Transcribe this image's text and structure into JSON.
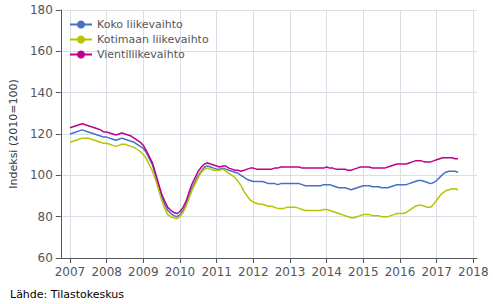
{
  "chart_data": {
    "type": "line",
    "ylabel": "Indeksi (2010=100)",
    "annotation": "Lähde: Tilastokeskus",
    "xlim": [
      2006.75,
      2018.1
    ],
    "xticks": [
      2007,
      2008,
      2009,
      2010,
      2011,
      2012,
      2013,
      2014,
      2015,
      2016,
      2017,
      2018
    ],
    "ylim": [
      60,
      180
    ],
    "yticks": [
      60,
      80,
      100,
      120,
      140,
      160,
      180
    ],
    "grid": true,
    "legend": "upper left",
    "x": [
      2007,
      2007.083333,
      2007.166667,
      2007.25,
      2007.333333,
      2007.416667,
      2007.5,
      2007.583333,
      2007.666667,
      2007.75,
      2007.833333,
      2007.916667,
      2008,
      2008.083333,
      2008.166667,
      2008.25,
      2008.333333,
      2008.416667,
      2008.5,
      2008.583333,
      2008.666667,
      2008.75,
      2008.833333,
      2008.916667,
      2009,
      2009.083333,
      2009.166667,
      2009.25,
      2009.333333,
      2009.416667,
      2009.5,
      2009.583333,
      2009.666667,
      2009.75,
      2009.833333,
      2009.916667,
      2010,
      2010.083333,
      2010.166667,
      2010.25,
      2010.333333,
      2010.416667,
      2010.5,
      2010.583333,
      2010.666667,
      2010.75,
      2010.833333,
      2010.916667,
      2011,
      2011.083333,
      2011.166667,
      2011.25,
      2011.333333,
      2011.416667,
      2011.5,
      2011.583333,
      2011.666667,
      2011.75,
      2011.833333,
      2011.916667,
      2012,
      2012.083333,
      2012.166667,
      2012.25,
      2012.333333,
      2012.416667,
      2012.5,
      2012.583333,
      2012.666667,
      2012.75,
      2012.833333,
      2012.916667,
      2013,
      2013.083333,
      2013.166667,
      2013.25,
      2013.333333,
      2013.416667,
      2013.5,
      2013.583333,
      2013.666667,
      2013.75,
      2013.833333,
      2013.916667,
      2014,
      2014.083333,
      2014.166667,
      2014.25,
      2014.333333,
      2014.416667,
      2014.5,
      2014.583333,
      2014.666667,
      2014.75,
      2014.833333,
      2014.916667,
      2015,
      2015.083333,
      2015.166667,
      2015.25,
      2015.333333,
      2015.416667,
      2015.5,
      2015.583333,
      2015.666667,
      2015.75,
      2015.833333,
      2015.916667,
      2016,
      2016.083333,
      2016.166667,
      2016.25,
      2016.333333,
      2016.416667,
      2016.5,
      2016.583333,
      2016.666667,
      2016.75,
      2016.833333,
      2016.916667,
      2017,
      2017.083333,
      2017.166667,
      2017.25,
      2017.333333,
      2017.416667,
      2017.5,
      2017.583333
    ],
    "series": [
      {
        "name": "Koko liikevaihto",
        "color": "#4472c4",
        "values": [
          120.0,
          120.5,
          121.0,
          121.5,
          122.0,
          121.5,
          121.0,
          120.5,
          120.0,
          119.5,
          119.0,
          118.5,
          118.5,
          118.0,
          117.5,
          117.0,
          117.5,
          118.0,
          117.5,
          117.0,
          116.5,
          116.0,
          115.0,
          114.0,
          113.0,
          111.0,
          108.0,
          105.0,
          100.0,
          95.0,
          90.0,
          86.0,
          83.0,
          81.5,
          80.5,
          80.0,
          81.0,
          83.0,
          86.0,
          90.0,
          94.0,
          97.0,
          100.0,
          102.0,
          104.0,
          104.5,
          104.0,
          103.5,
          103.0,
          103.0,
          103.5,
          103.0,
          102.5,
          102.0,
          101.5,
          101.0,
          100.0,
          99.0,
          98.0,
          97.5,
          97.0,
          97.0,
          97.0,
          97.0,
          96.5,
          96.0,
          96.0,
          96.0,
          95.5,
          96.0,
          96.0,
          96.0,
          96.0,
          96.0,
          96.0,
          96.0,
          95.5,
          95.0,
          95.0,
          95.0,
          95.0,
          95.0,
          95.0,
          95.5,
          95.5,
          95.5,
          95.0,
          94.5,
          94.0,
          94.0,
          94.0,
          93.5,
          93.0,
          93.5,
          94.0,
          94.5,
          95.0,
          95.0,
          95.0,
          94.5,
          94.5,
          94.5,
          94.0,
          94.0,
          94.0,
          94.5,
          95.0,
          95.5,
          95.5,
          95.5,
          95.5,
          96.0,
          96.5,
          97.0,
          97.5,
          97.5,
          97.0,
          96.5,
          96.0,
          96.5,
          97.5,
          99.0,
          100.5,
          101.5,
          102.0,
          102.0,
          102.0,
          101.5
        ]
      },
      {
        "name": "Kotimaan liikevaihto",
        "color": "#b8c400",
        "values": [
          116.0,
          116.5,
          117.0,
          117.5,
          118.0,
          118.0,
          118.0,
          117.5,
          117.0,
          116.5,
          116.0,
          115.5,
          115.5,
          115.0,
          114.5,
          114.0,
          114.5,
          115.0,
          115.0,
          114.5,
          114.0,
          113.5,
          112.5,
          111.5,
          110.0,
          108.0,
          105.0,
          102.0,
          98.0,
          93.0,
          88.0,
          84.0,
          81.0,
          80.0,
          79.5,
          79.0,
          80.0,
          82.0,
          85.0,
          89.0,
          93.0,
          96.0,
          99.0,
          101.5,
          103.0,
          103.5,
          103.0,
          102.5,
          102.5,
          102.5,
          103.0,
          102.0,
          101.0,
          100.0,
          99.0,
          97.0,
          95.0,
          92.0,
          90.0,
          88.0,
          87.0,
          86.5,
          86.0,
          86.0,
          85.5,
          85.0,
          85.0,
          84.5,
          84.0,
          84.0,
          84.0,
          84.5,
          84.5,
          84.5,
          84.5,
          84.0,
          83.5,
          83.0,
          83.0,
          83.0,
          83.0,
          83.0,
          83.0,
          83.5,
          83.5,
          83.0,
          82.5,
          82.0,
          81.5,
          81.0,
          80.5,
          80.0,
          79.5,
          79.5,
          80.0,
          80.5,
          81.0,
          81.0,
          81.0,
          80.5,
          80.5,
          80.5,
          80.0,
          80.0,
          80.0,
          80.5,
          81.0,
          81.5,
          81.5,
          81.5,
          82.0,
          83.0,
          84.0,
          85.0,
          85.5,
          85.5,
          85.0,
          84.5,
          84.5,
          86.0,
          88.0,
          90.0,
          91.5,
          92.5,
          93.0,
          93.5,
          93.5,
          93.0
        ]
      },
      {
        "name": "Vientiliikevaihto",
        "color": "#c0008a",
        "values": [
          123.0,
          123.5,
          124.0,
          124.5,
          125.0,
          124.5,
          124.0,
          123.5,
          123.0,
          122.5,
          122.0,
          121.0,
          121.0,
          120.5,
          120.0,
          119.5,
          120.0,
          120.5,
          120.0,
          119.5,
          119.0,
          118.0,
          117.0,
          116.0,
          114.5,
          112.0,
          109.0,
          106.0,
          101.0,
          96.0,
          91.0,
          87.5,
          84.5,
          83.0,
          82.0,
          81.5,
          82.5,
          84.5,
          87.5,
          92.0,
          96.0,
          99.0,
          102.0,
          104.0,
          105.5,
          106.0,
          105.5,
          105.0,
          104.5,
          104.0,
          104.5,
          104.5,
          103.5,
          103.0,
          102.5,
          102.5,
          102.0,
          102.5,
          103.0,
          103.5,
          103.5,
          103.0,
          103.0,
          103.0,
          103.0,
          103.0,
          103.0,
          103.5,
          103.5,
          104.0,
          104.0,
          104.0,
          104.0,
          104.0,
          104.0,
          104.0,
          103.5,
          103.5,
          103.5,
          103.5,
          103.5,
          103.5,
          103.5,
          103.5,
          104.0,
          103.5,
          103.5,
          103.0,
          103.0,
          103.0,
          103.0,
          102.5,
          102.5,
          103.0,
          103.5,
          104.0,
          104.0,
          104.0,
          104.0,
          103.5,
          103.5,
          103.5,
          103.5,
          103.5,
          104.0,
          104.5,
          105.0,
          105.5,
          105.5,
          105.5,
          105.5,
          106.0,
          106.5,
          107.0,
          107.0,
          107.0,
          106.5,
          106.5,
          106.5,
          107.0,
          107.5,
          108.0,
          108.5,
          108.5,
          108.5,
          108.5,
          108.0,
          108.0
        ]
      }
    ]
  }
}
